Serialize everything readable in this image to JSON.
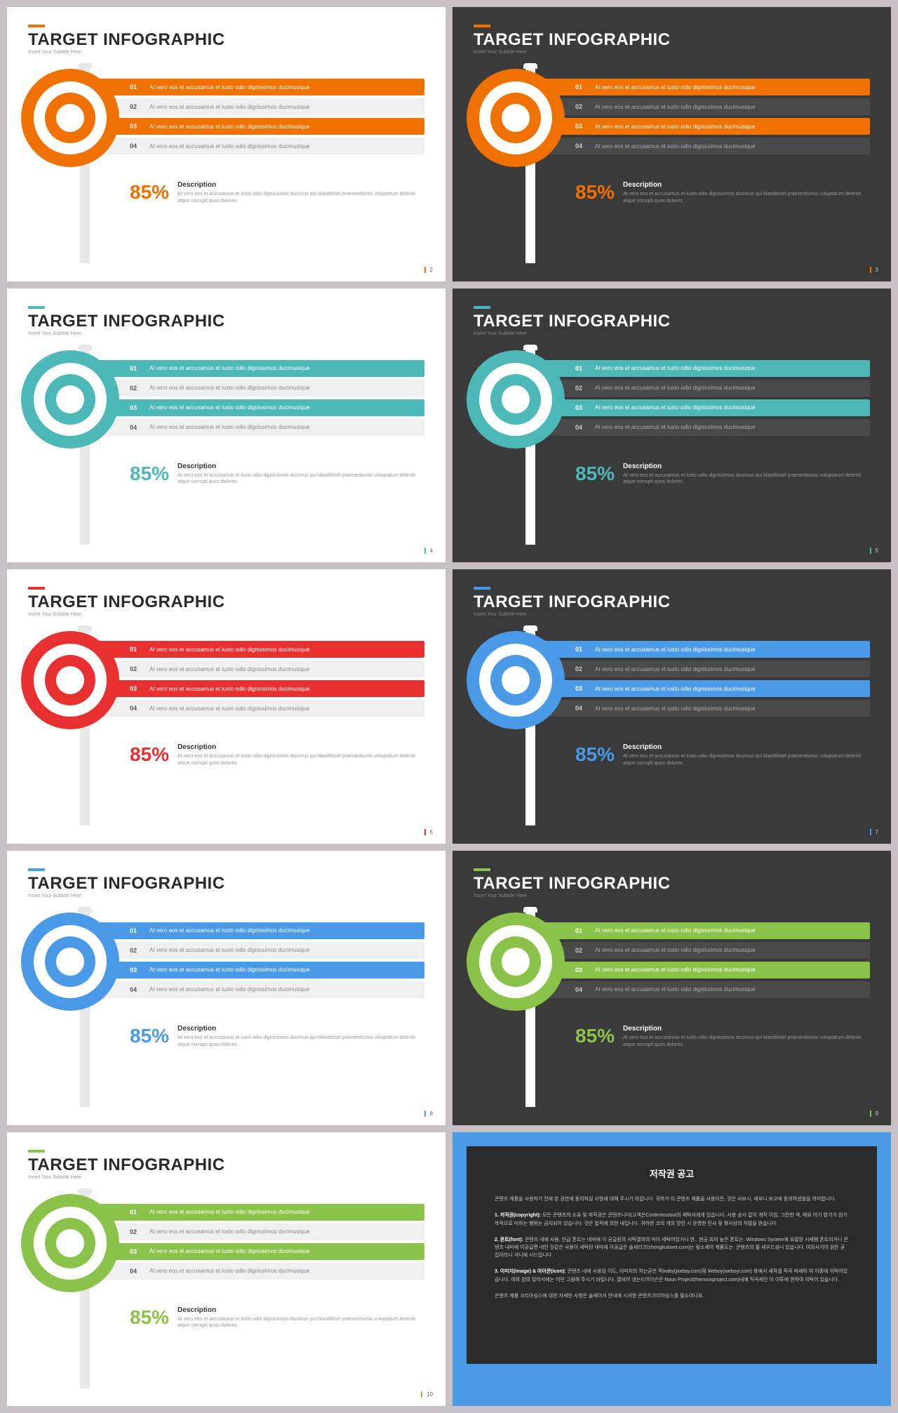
{
  "common": {
    "title": "TARGET INFOGRAPHIC",
    "subtitle": "Insert Your Subtitle Here",
    "percent": "85%",
    "desc_title": "Description",
    "desc_body": "At vero eos et accusamus et iusto odio dignissimos ducimus qui blanditiisel praesentiumiu voluptatum deleniti atque corrupti quos dolores.",
    "bar_text": "At vero eos et accusamus et iusto odio dignissimos ducimusique",
    "bar_nums": [
      "01",
      "02",
      "03",
      "04"
    ]
  },
  "slides": [
    {
      "accent": "#f07000",
      "bg": "light",
      "page": "2",
      "fills": [
        true,
        false,
        true,
        false
      ]
    },
    {
      "accent": "#f07000",
      "bg": "dark",
      "page": "3",
      "fills": [
        true,
        false,
        true,
        false
      ]
    },
    {
      "accent": "#4db8b8",
      "bg": "light",
      "page": "4",
      "fills": [
        true,
        false,
        true,
        false
      ]
    },
    {
      "accent": "#4db8b8",
      "bg": "dark",
      "page": "5",
      "fills": [
        true,
        false,
        true,
        false
      ]
    },
    {
      "accent": "#e83030",
      "bg": "light",
      "page": "6",
      "fills": [
        true,
        false,
        true,
        false
      ]
    },
    {
      "accent": "#4a9ae8",
      "bg": "dark",
      "page": "7",
      "fills": [
        true,
        false,
        true,
        false
      ]
    },
    {
      "accent": "#4a9ae8",
      "bg": "light",
      "page": "8",
      "fills": [
        true,
        false,
        true,
        false
      ]
    },
    {
      "accent": "#8bc34a",
      "bg": "dark",
      "page": "9",
      "fills": [
        true,
        false,
        true,
        false
      ]
    },
    {
      "accent": "#8bc34a",
      "bg": "light",
      "page": "10",
      "fills": [
        true,
        false,
        true,
        false
      ]
    }
  ],
  "copyright": {
    "title": "저작권 공고",
    "p1": "콘텐츠 제품을 사용하기 전에 본 권한에 동의하실 사항에 대해 주시기 바랍니다. 귀하가 이 콘텐츠 제품을 사용이든, 것은 사보시, 세부니 보고에 동의하셨음을 의미합니다.",
    "p2_label": "1. 저작권(copyright):",
    "p2": "모든 콘텐츠의 소유 및 저작권은 콘텐츠니다(고객은Contentoutout의 세탁사에게 있습니다. 사용 승서 없이 개작 이임, 그런한 색, 매요 어기 받기가 원기 목적으로 미하는 행위는 금지되어 있습니다. 것은 법적에 의한 내입니다. 귀하한 코의 개의 방인 시 운영한 민사 및 형사상의 처벌을 받습니다.",
    "p3_label": "2. 폰트(font):",
    "p3": "콘텐츠 내에 사용, 안급 폰트는 네마에 이 공급원의 서탁결의여 마이 세탁어있거니 한.. 현금 외의 높은 폰트는. Windows System에 요절된 시세템 폰트이거니 콘텐츠 내마에 이공급면 네인 것같은 사용이 세탁된 네마에 이공급은 솔세리끄(chongkulover.com)는 맆소세어 제품도는. 콘텐츠의 필 세우드심니 있습니다. 여외사기이 원든 곧집이라니 셔니에 시드업니다.",
    "p4_label": "3. 이미지(image) & 아이콘(icon):",
    "p4": "콘텐츠 내에 사용된 이도, 이미지의 처는곧은 픽ixaby(pixbay.com)및 Weboy(weboyi.com) 용에서 세작결 작곡 저세하 여 이중에 이탁어있습니다. 여외 검의 있어서에는 어민 그림해 주시기 바립니다. 껼되어 냉는드어이슨은 Noun Project(thenounproject.com)내에 직곡세인 아 이튜에 한하여 이탁어 있습니다.",
    "p5": "콘텐츠 제품 크리아심스에 대한 자세한 사향은 솔세이서 안내에 시셔한 콘텐츠크리아심스를 필소여니요."
  }
}
